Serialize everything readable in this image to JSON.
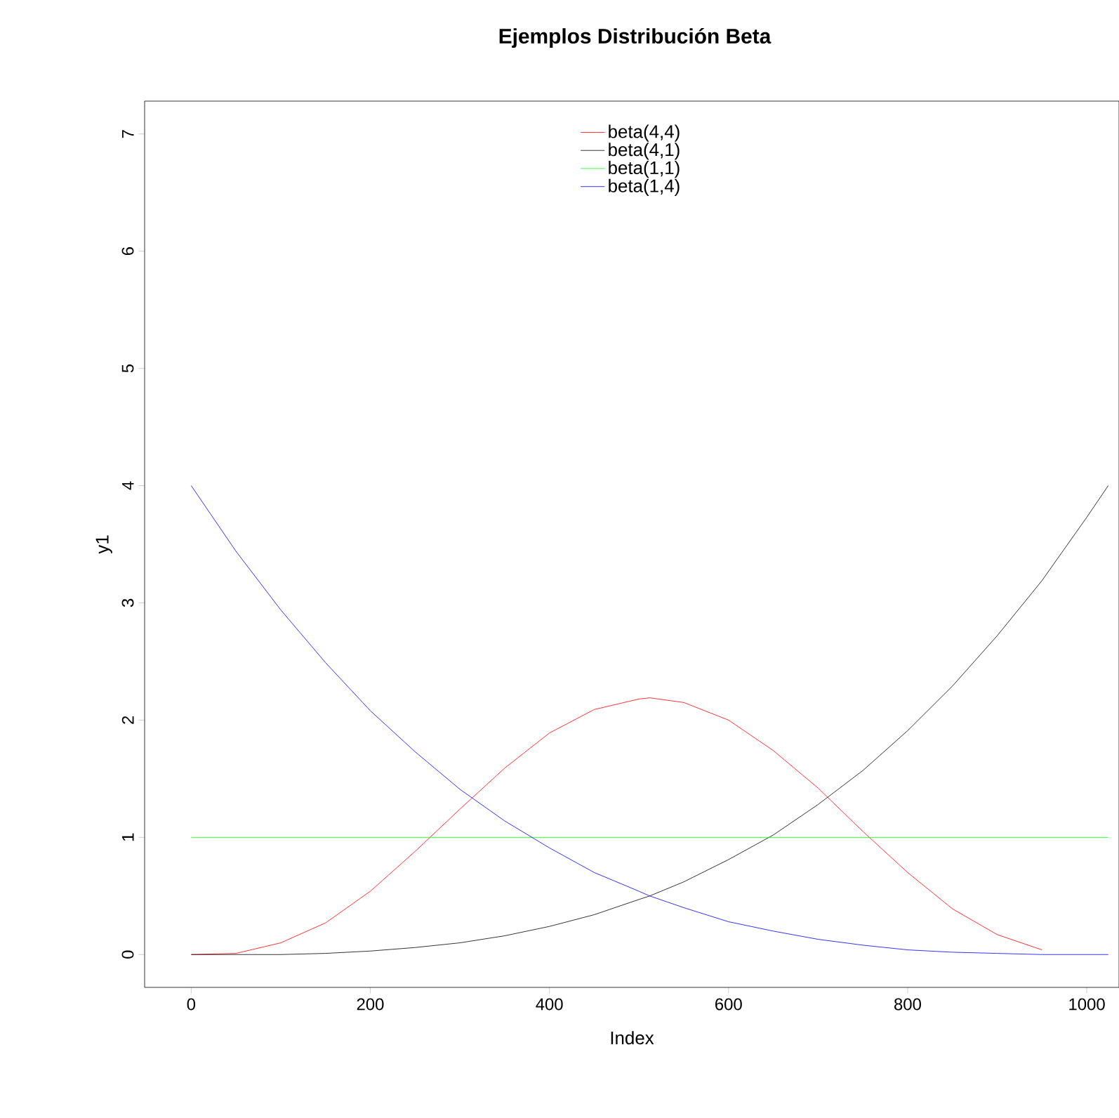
{
  "chart_data": {
    "type": "line",
    "title": "Ejemplos Distribución Beta",
    "xlabel": "Index",
    "ylabel": "y1",
    "x": [
      0,
      50,
      100,
      150,
      200,
      250,
      300,
      350,
      400,
      450,
      500,
      512,
      550,
      600,
      650,
      700,
      750,
      800,
      850,
      900,
      950,
      1000,
      1024
    ],
    "series": [
      {
        "name": "beta(4,4)",
        "color": "#ff0000",
        "values": [
          0,
          0.01,
          0.1,
          0.27,
          0.54,
          0.88,
          1.24,
          1.59,
          1.89,
          2.09,
          2.18,
          2.19,
          2.15,
          2.0,
          1.74,
          1.42,
          1.05,
          0.7,
          0.39,
          0.17,
          0.04,
          null,
          null
        ]
      },
      {
        "name": "beta(4,1)",
        "color": "#000000",
        "values": [
          0,
          0.0,
          0.0,
          0.01,
          0.03,
          0.06,
          0.1,
          0.16,
          0.24,
          0.34,
          0.47,
          0.5,
          0.62,
          0.81,
          1.02,
          1.28,
          1.57,
          1.91,
          2.29,
          2.72,
          3.19,
          3.73,
          4
        ]
      },
      {
        "name": "beta(1,1)",
        "color": "#00ff00",
        "values": [
          1,
          1,
          1,
          1,
          1,
          1,
          1,
          1,
          1,
          1,
          1,
          1,
          1,
          1,
          1,
          1,
          1,
          1,
          1,
          1,
          1,
          1,
          1
        ]
      },
      {
        "name": "beta(1,4)",
        "color": "#0000ff",
        "values": [
          4,
          3.44,
          2.94,
          2.49,
          2.08,
          1.73,
          1.41,
          1.14,
          0.91,
          0.7,
          0.54,
          0.5,
          0.4,
          0.28,
          0.2,
          0.13,
          0.08,
          0.04,
          0.02,
          0.01,
          0.0,
          0.0,
          0
        ]
      }
    ],
    "xlim": [
      -52,
      1036
    ],
    "ylim": [
      -0.28,
      7.28
    ],
    "xticks": [
      0,
      200,
      400,
      600,
      800,
      1000
    ],
    "yticks": [
      0,
      1,
      2,
      3,
      4,
      5,
      6,
      7
    ],
    "legend": "top",
    "marker": "none",
    "line_style": "solid"
  }
}
